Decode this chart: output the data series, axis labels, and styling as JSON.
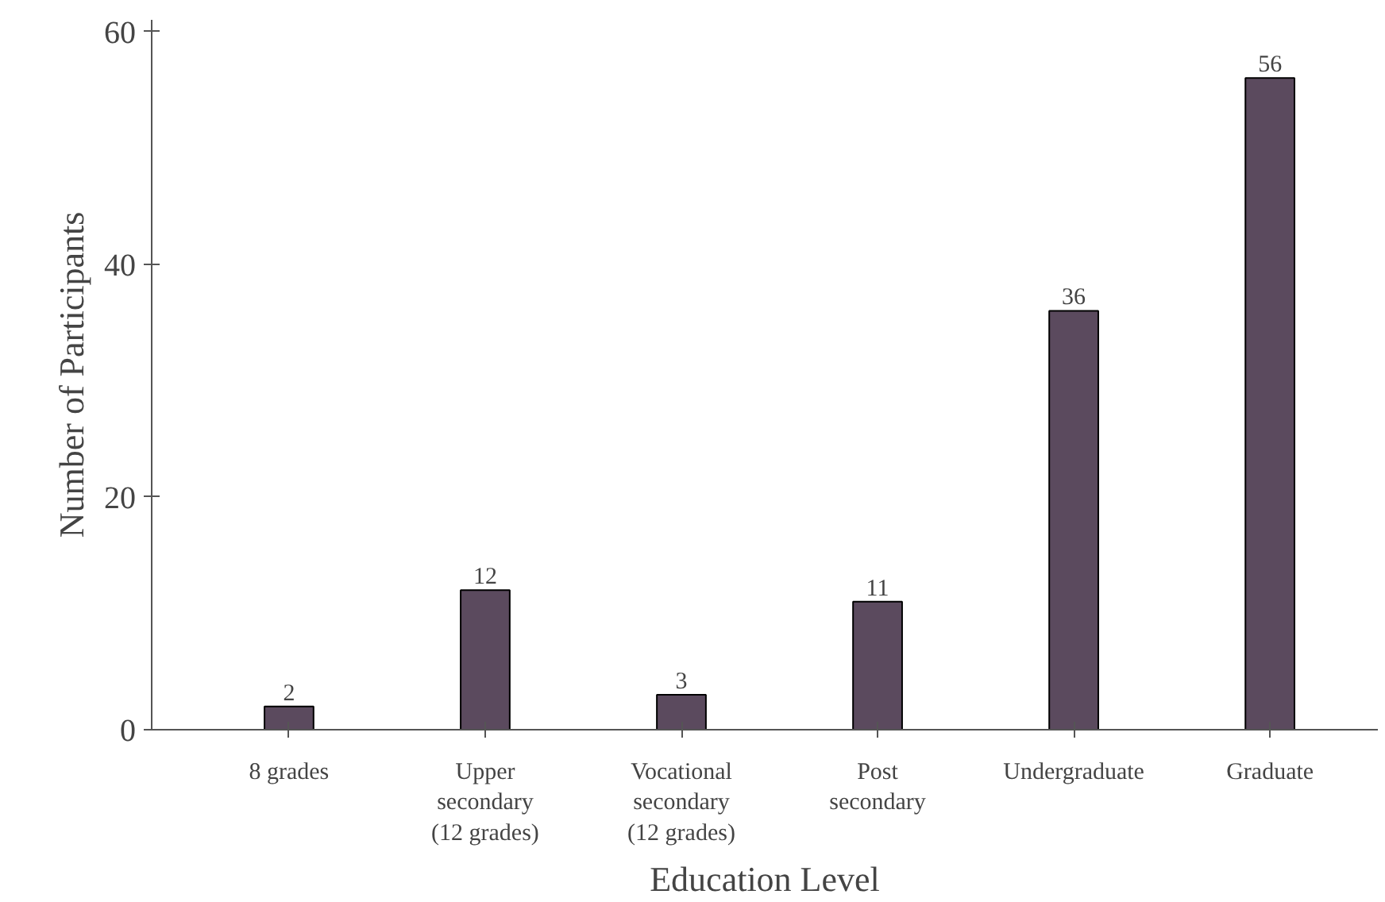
{
  "chart_data": {
    "type": "bar",
    "xlabel": "Education Level",
    "ylabel": "Number of Participants",
    "categories": [
      "8 grades",
      "Upper\nsecondary\n(12 grades)",
      "Vocational\nsecondary\n(12 grades)",
      "Post\nsecondary",
      "Undergraduate",
      "Graduate"
    ],
    "values": [
      2,
      12,
      3,
      11,
      36,
      56
    ],
    "color": "#5b4a5e",
    "ylim": [
      0,
      61
    ],
    "yticks": [
      0,
      20,
      40,
      60
    ],
    "grid": false,
    "data_labels": true
  }
}
